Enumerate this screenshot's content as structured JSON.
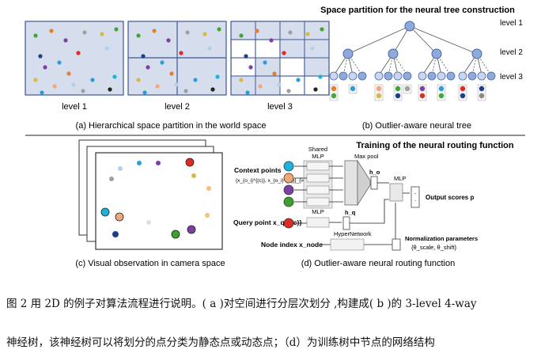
{
  "figure": {
    "panel_a": {
      "level_labels": [
        "level 1",
        "level 2",
        "level 3"
      ],
      "caption": "(a) Hierarchical space partition in the world space"
    },
    "panel_b": {
      "title": "Space partition for the neural tree construction",
      "level_labels": [
        "level 1",
        "level 2",
        "level 3"
      ],
      "caption": "(b) Outlier-aware neural tree"
    },
    "panel_c": {
      "caption": "(c) Visual observation in camera space"
    },
    "panel_d": {
      "title": "Training of the neural routing function",
      "shared_mlp": "Shared\nMLP",
      "max_pool": "Max pool",
      "mlp_top": "MLP",
      "mlp_mid": "MLP",
      "mlp_right": "MLP",
      "hypernetwork": "HyperNetwork",
      "context_points": "Context points",
      "context_formula": "{x_{o_i}^{(c)}, x_{o_i}^{(r)}}_{i=1}^N",
      "query_point": "Query point x_q^{(c)}",
      "node_index": "Node index x_node",
      "h_o": "h_o",
      "h_q": "h_q",
      "output_scores": "Output scores p",
      "norm_params": "Normalization parameters",
      "norm_formula": "{θ_scale, θ_shift}",
      "caption": "(d) Outlier-aware neural routing function"
    },
    "colors": {
      "cell_fill": "#d6deee",
      "cell_border": "#3f5597",
      "node_fill": "#8fa9da",
      "node_border": "#4a67a8",
      "ctx_cyan": "#1ab4dc",
      "ctx_peach": "#f2a77a",
      "ctx_purple": "#7b3fa6",
      "ctx_green": "#3aa030",
      "query_red": "#e02a24"
    }
  },
  "caption_zh": {
    "line1": "图 2 用 2D 的例子对算法流程进行说明。( a )对空间进行分层次划分 ,构建成( b )的 3-level 4-way",
    "line2": "神经树，该神经树可以将划分的点分类为静态点或动态点；（d）为训练树中节点的网络结构"
  }
}
